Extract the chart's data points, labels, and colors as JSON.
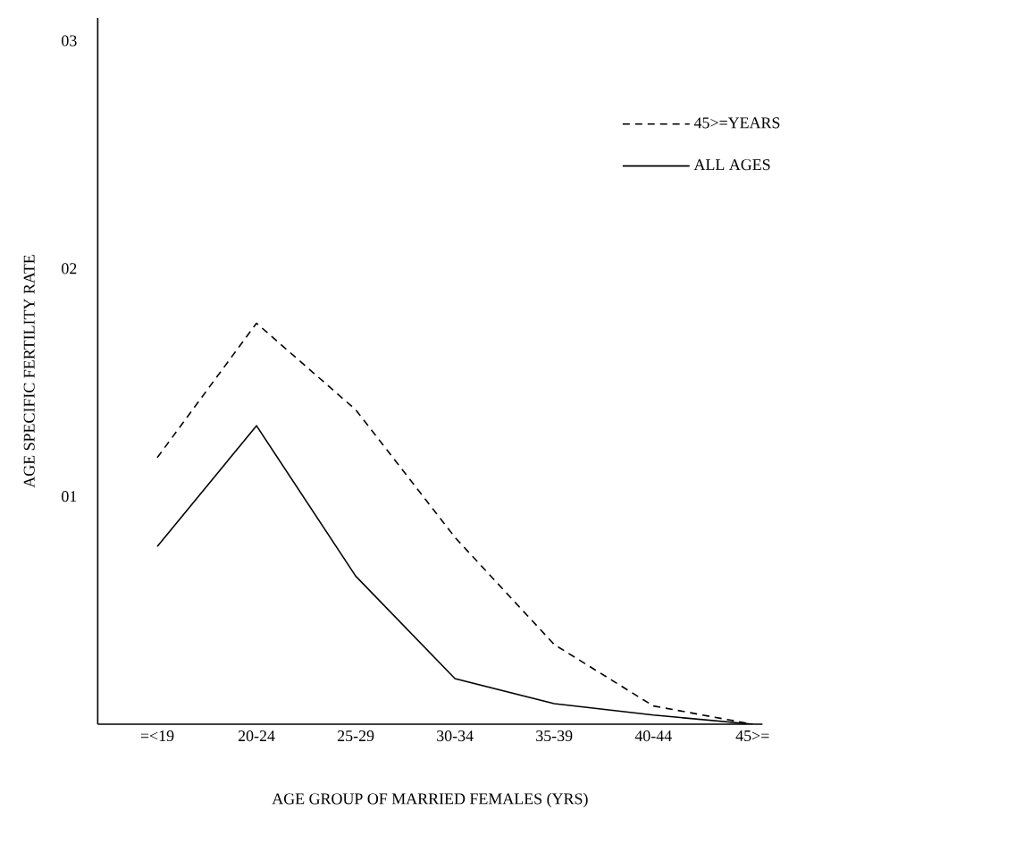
{
  "chart_data": {
    "type": "line",
    "xlabel": "AGE GROUP OF MARRIED FEMALES (YRS)",
    "ylabel": "AGE SPECIFIC FERTILITY RATE",
    "categories": [
      "=<19",
      "20-24",
      "25-29",
      "30-34",
      "35-39",
      "40-44",
      "45>="
    ],
    "series": [
      {
        "name": "45>=YEARS",
        "color": "#000000",
        "line_style": "dashed",
        "values": [
          1.17,
          1.76,
          1.38,
          0.82,
          0.35,
          0.08,
          0
        ]
      },
      {
        "name": "ALL AGES",
        "color": "#000000",
        "line_style": "solid",
        "values": [
          0.78,
          1.31,
          0.65,
          0.2,
          0.09,
          0.04,
          0
        ]
      }
    ],
    "ylim": [
      0,
      3.1
    ],
    "yticks": [
      {
        "value": 1,
        "label": "01"
      },
      {
        "value": 2,
        "label": "02"
      },
      {
        "value": 3,
        "label": "03"
      }
    ],
    "legend": "top right",
    "grid": false,
    "marker": "none"
  }
}
